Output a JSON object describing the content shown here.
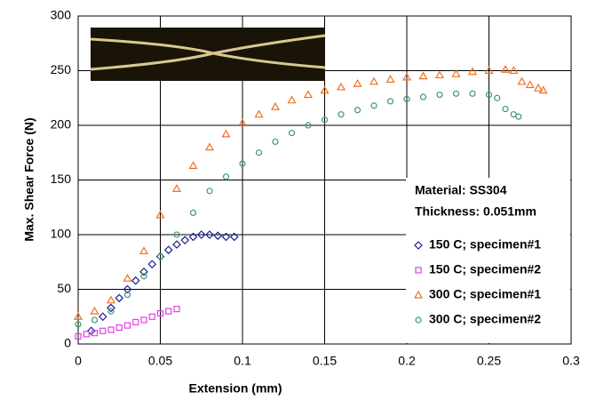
{
  "chart_data": {
    "type": "scatter",
    "x_label": "Extension (mm)",
    "y_label": "Max. Shear Force (N)",
    "annotations": [
      "Material: SS304",
      "Thickness: 0.051mm"
    ],
    "xlim": [
      0,
      0.3
    ],
    "xticks": [
      0,
      0.05,
      0.1,
      0.15,
      0.2,
      0.25,
      0.3
    ],
    "ylim": [
      0,
      300
    ],
    "yticks": [
      0,
      50,
      100,
      150,
      200,
      250,
      300
    ],
    "grid": true,
    "legend": "lower right",
    "series": [
      {
        "name": "150 C; specimen#1",
        "color": "#1f1f8f",
        "marker": "diamond",
        "x": [
          0.008,
          0.015,
          0.02,
          0.025,
          0.03,
          0.035,
          0.04,
          0.045,
          0.05,
          0.055,
          0.06,
          0.065,
          0.07,
          0.075,
          0.08,
          0.085,
          0.09,
          0.095
        ],
        "values": [
          12,
          25,
          33,
          42,
          50,
          58,
          66,
          73,
          80,
          86,
          91,
          95,
          98,
          100,
          100,
          99,
          98,
          98
        ]
      },
      {
        "name": "150 C; specimen#2",
        "color": "#e040e0",
        "marker": "square",
        "x": [
          0,
          0.005,
          0.01,
          0.015,
          0.02,
          0.025,
          0.03,
          0.035,
          0.04,
          0.045,
          0.05,
          0.055,
          0.06
        ],
        "values": [
          7,
          9,
          10,
          12,
          13,
          15,
          17,
          20,
          22,
          25,
          28,
          30,
          32
        ]
      },
      {
        "name": "300 C; specimen#1",
        "color": "#f07020",
        "marker": "triangle",
        "x": [
          0,
          0.01,
          0.02,
          0.03,
          0.04,
          0.05,
          0.06,
          0.07,
          0.08,
          0.09,
          0.1,
          0.11,
          0.12,
          0.13,
          0.14,
          0.15,
          0.16,
          0.17,
          0.18,
          0.19,
          0.2,
          0.21,
          0.22,
          0.23,
          0.24,
          0.25,
          0.26,
          0.265,
          0.27,
          0.275,
          0.28,
          0.283
        ],
        "values": [
          25,
          30,
          40,
          60,
          85,
          118,
          142,
          163,
          180,
          192,
          202,
          210,
          217,
          223,
          228,
          232,
          235,
          238,
          240,
          242,
          244,
          245,
          246,
          247,
          249,
          250,
          251,
          250,
          240,
          237,
          234,
          232
        ]
      },
      {
        "name": "300 C; specimen#2",
        "color": "#3a9a70",
        "marker": "circle",
        "x": [
          0,
          0.01,
          0.02,
          0.03,
          0.04,
          0.05,
          0.06,
          0.07,
          0.08,
          0.09,
          0.1,
          0.11,
          0.12,
          0.13,
          0.14,
          0.15,
          0.16,
          0.17,
          0.18,
          0.19,
          0.2,
          0.21,
          0.22,
          0.23,
          0.24,
          0.25,
          0.255,
          0.26,
          0.265,
          0.268
        ],
        "values": [
          18,
          22,
          30,
          45,
          62,
          80,
          100,
          120,
          140,
          153,
          165,
          175,
          185,
          193,
          200,
          205,
          210,
          214,
          218,
          222,
          224,
          226,
          228,
          229,
          229,
          228,
          225,
          215,
          210,
          208
        ]
      }
    ]
  }
}
